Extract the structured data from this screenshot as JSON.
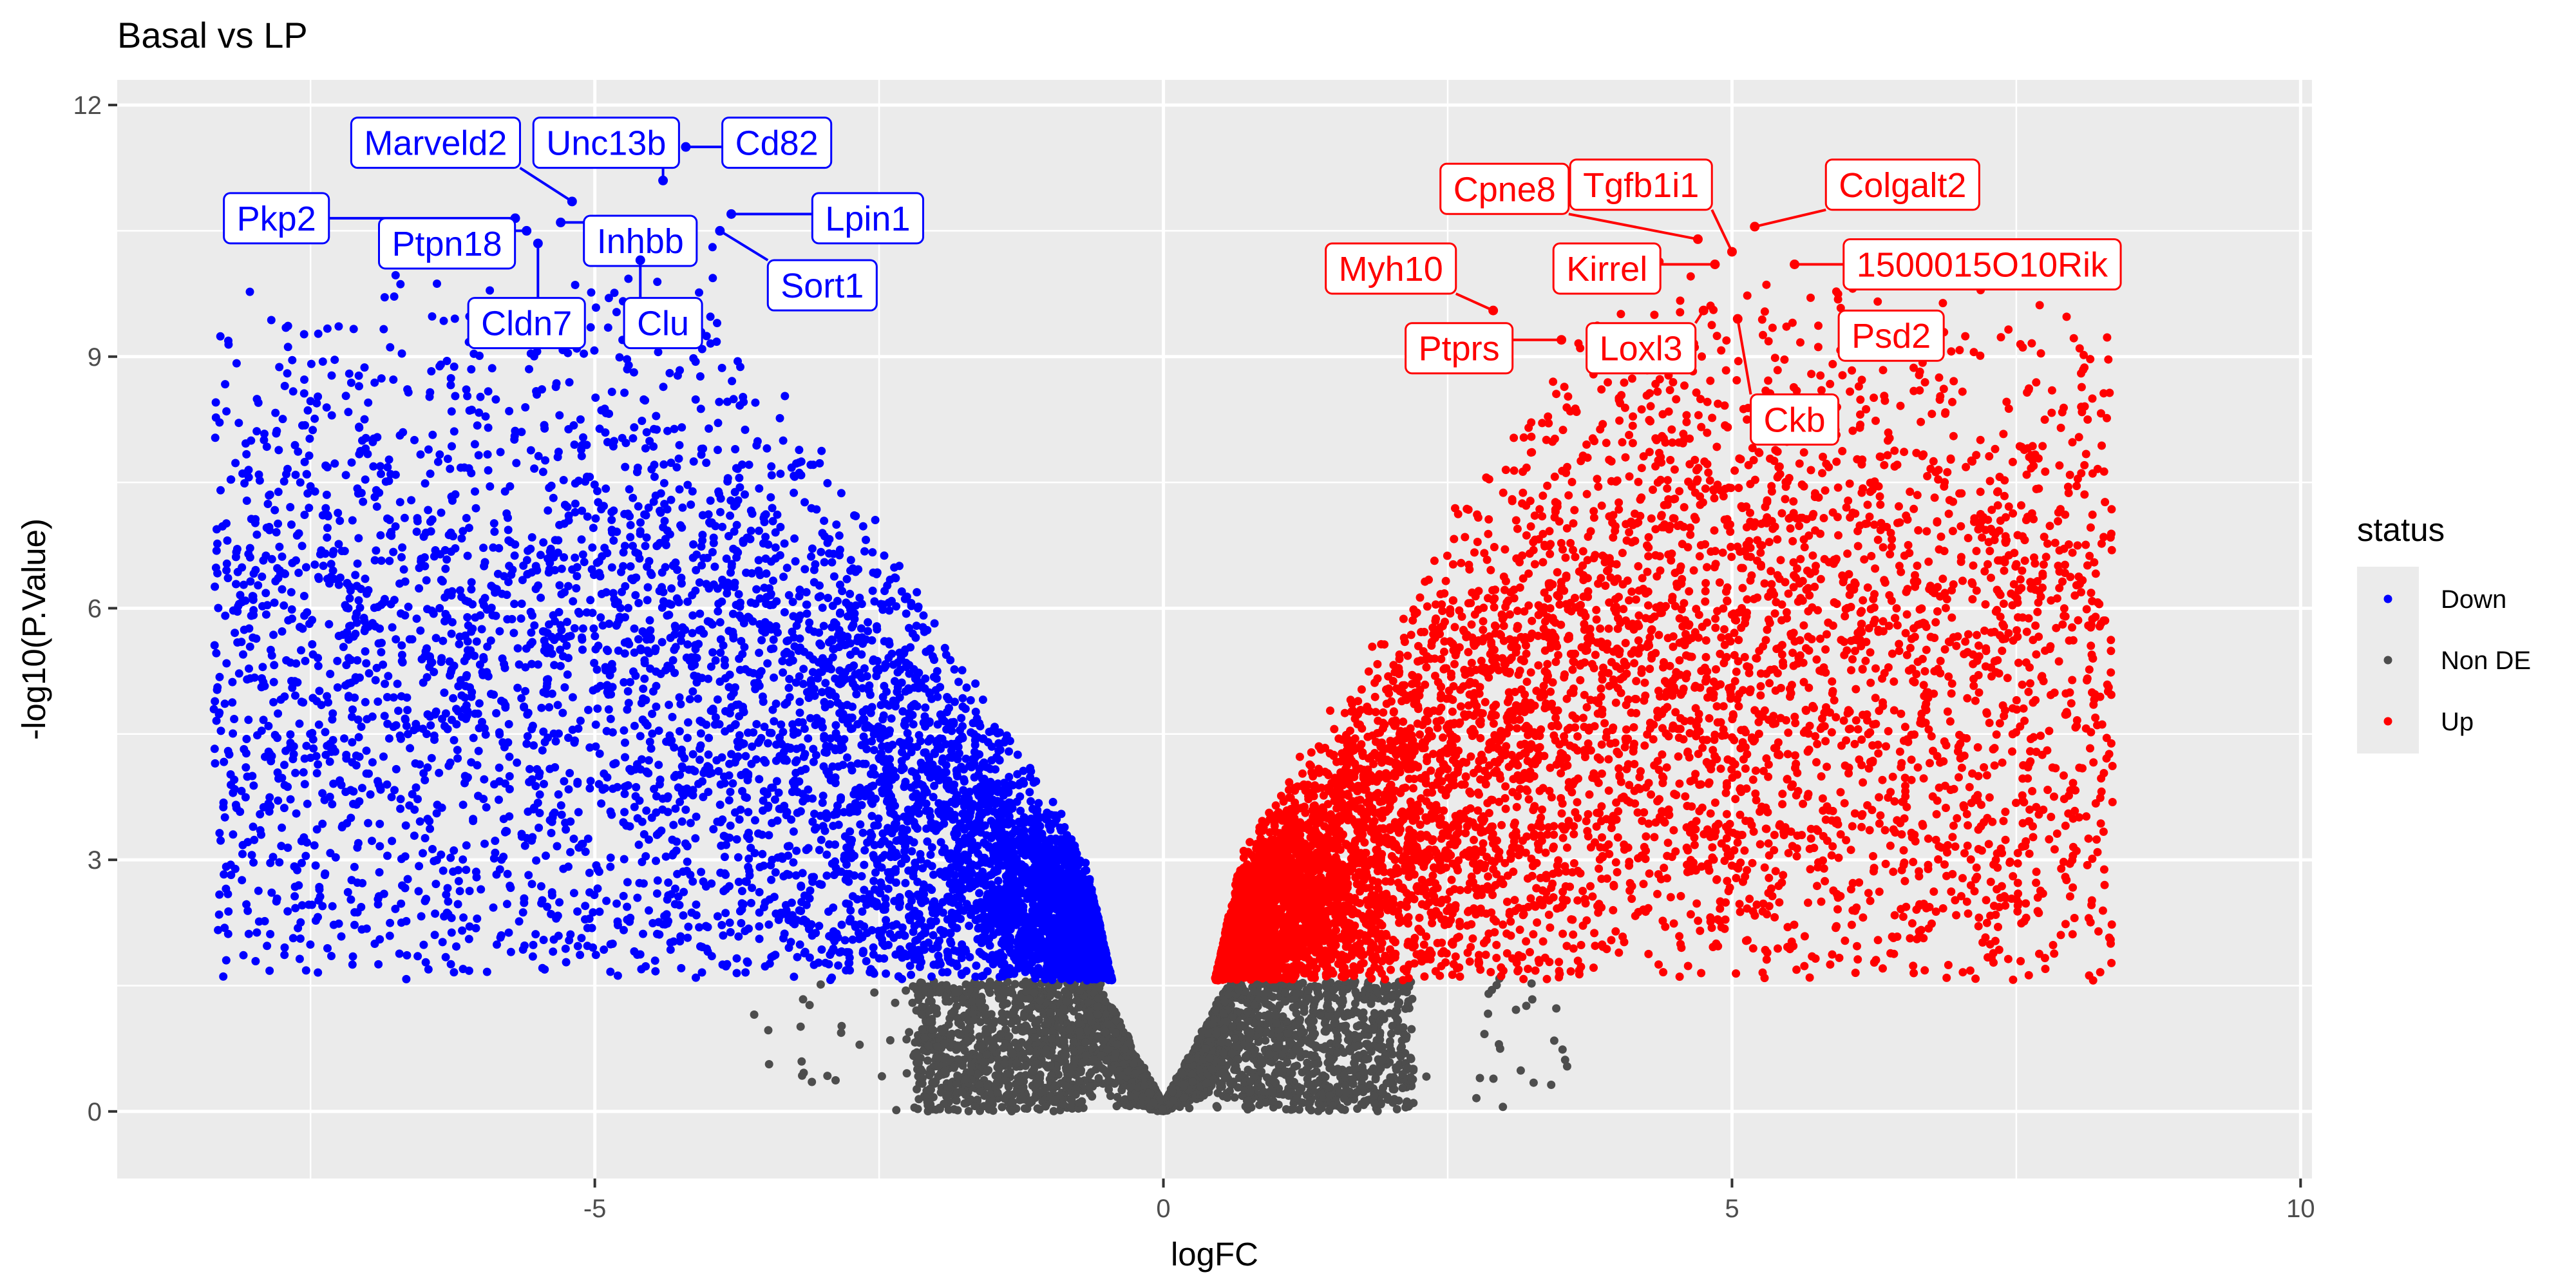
{
  "chart_data": {
    "type": "scatter",
    "title": "Basal vs LP",
    "xlabel": "logFC",
    "ylabel": "-log10(P.Value)",
    "xlim": [
      -9.2,
      10.1
    ],
    "ylim": [
      -0.8,
      12.3
    ],
    "x_ticks": [
      -5,
      0,
      5,
      10
    ],
    "y_ticks": [
      0,
      3,
      6,
      9,
      12
    ],
    "grid": true,
    "legend": {
      "title": "status",
      "position": "right",
      "entries": [
        {
          "label": "Down",
          "color": "#0000FF"
        },
        {
          "label": "Non DE",
          "color": "#4D4D4D"
        },
        {
          "label": "Up",
          "color": "#FF0000"
        }
      ]
    },
    "series": [
      {
        "name": "Down",
        "color": "#0000FF",
        "points_estimated": 5600
      },
      {
        "name": "Non DE",
        "color": "#4D4D4D",
        "points_estimated": 3600
      },
      {
        "name": "Up",
        "color": "#FF0000",
        "points_estimated": 6400
      }
    ],
    "highlight_points": [
      {
        "name": "Marveld2",
        "x": -5.2,
        "y": 10.85,
        "status": "Down",
        "label_x": -6.4,
        "label_y": 11.55
      },
      {
        "name": "Unc13b",
        "x": -4.4,
        "y": 11.1,
        "status": "Down",
        "label_x": -4.9,
        "label_y": 11.55
      },
      {
        "name": "Cd82",
        "x": -4.2,
        "y": 11.5,
        "status": "Down",
        "label_x": -3.4,
        "label_y": 11.55
      },
      {
        "name": "Pkp2",
        "x": -5.7,
        "y": 10.65,
        "status": "Down",
        "label_x": -7.8,
        "label_y": 10.65
      },
      {
        "name": "Lpin1",
        "x": -3.8,
        "y": 10.7,
        "status": "Down",
        "label_x": -2.6,
        "label_y": 10.65
      },
      {
        "name": "Ptpn18",
        "x": -5.6,
        "y": 10.5,
        "status": "Down",
        "label_x": -6.3,
        "label_y": 10.35
      },
      {
        "name": "Inhbb",
        "x": -5.3,
        "y": 10.6,
        "status": "Down",
        "label_x": -4.6,
        "label_y": 10.38
      },
      {
        "name": "Sort1",
        "x": -3.9,
        "y": 10.5,
        "status": "Down",
        "label_x": -3.0,
        "label_y": 9.85
      },
      {
        "name": "Cldn7",
        "x": -5.5,
        "y": 10.35,
        "status": "Down",
        "label_x": -5.6,
        "label_y": 9.4
      },
      {
        "name": "Clu",
        "x": -4.6,
        "y": 10.15,
        "status": "Down",
        "label_x": -4.4,
        "label_y": 9.4
      },
      {
        "name": "Cpne8",
        "x": 4.7,
        "y": 10.4,
        "status": "Up",
        "label_x": 3.0,
        "label_y": 11.0
      },
      {
        "name": "Tgfb1i1",
        "x": 5.0,
        "y": 10.25,
        "status": "Up",
        "label_x": 4.2,
        "label_y": 11.05
      },
      {
        "name": "Colgalt2",
        "x": 5.2,
        "y": 10.55,
        "status": "Up",
        "label_x": 6.5,
        "label_y": 11.05
      },
      {
        "name": "Myh10",
        "x": 2.9,
        "y": 9.55,
        "status": "Up",
        "label_x": 2.0,
        "label_y": 10.05
      },
      {
        "name": "Kirrel",
        "x": 4.85,
        "y": 10.1,
        "status": "Up",
        "label_x": 3.9,
        "label_y": 10.05
      },
      {
        "name": "1500015O10Rik",
        "x": 5.55,
        "y": 10.1,
        "status": "Up",
        "label_x": 7.2,
        "label_y": 10.1
      },
      {
        "name": "Ptprs",
        "x": 3.5,
        "y": 9.2,
        "status": "Up",
        "label_x": 2.6,
        "label_y": 9.1
      },
      {
        "name": "Loxl3",
        "x": 4.75,
        "y": 9.55,
        "status": "Up",
        "label_x": 4.2,
        "label_y": 9.1
      },
      {
        "name": "Psd2",
        "x": 6.6,
        "y": 9.15,
        "status": "Up",
        "label_x": 6.4,
        "label_y": 9.25
      },
      {
        "name": "Ckb",
        "x": 5.05,
        "y": 9.45,
        "status": "Up",
        "label_x": 5.55,
        "label_y": 8.25
      }
    ]
  }
}
